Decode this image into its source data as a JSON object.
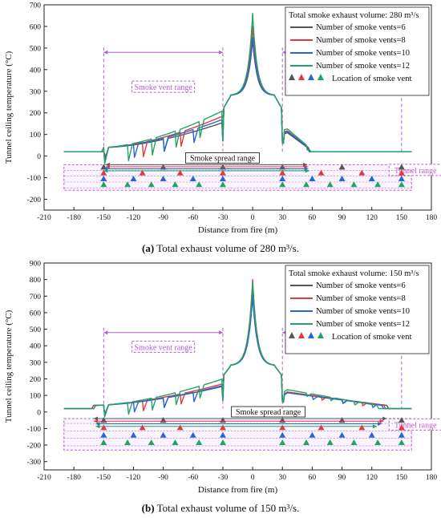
{
  "colors": {
    "six": "#555555",
    "eight": "#e03a3e",
    "ten": "#2b63d8",
    "twelve": "#1ea564",
    "range": "#b35ed9",
    "tunnel": "#c45ad6"
  },
  "panels": [
    {
      "caption_letter": "(a)",
      "caption_text": "Total exhaust volume of 280 m³/s.",
      "chart_data": {
        "type": "line",
        "ylabel": "Tunnel ceiling temperature (°C)",
        "xlabel": "Distance from fire (m)",
        "xlim": [
          -210,
          180
        ],
        "ylim": [
          -250,
          700
        ],
        "x_ticks": [
          -210,
          -180,
          -150,
          -120,
          -90,
          -60,
          -30,
          0,
          30,
          60,
          90,
          120,
          150,
          180
        ],
        "y_ticks": [
          -200,
          -100,
          0,
          100,
          200,
          300,
          400,
          500,
          600,
          700
        ],
        "legend_title": "Total smoke exhaust volume: 280 m³/s",
        "series": [
          {
            "name": "Number of smoke vents=6",
            "key": "six",
            "vents": [
              -150,
              -90,
              -30,
              30,
              90,
              150
            ],
            "peak": 540,
            "upstream_max": 155,
            "downstream_max": 125,
            "spread_up": -148,
            "spread_down": 55
          },
          {
            "name": "Number of smoke vents=8",
            "key": "eight",
            "vents": [
              -150,
              -111,
              -73,
              -30,
              30,
              69,
              110,
              150
            ],
            "peak": 600,
            "upstream_max": 185,
            "downstream_max": 135,
            "spread_up": -148,
            "spread_down": 56
          },
          {
            "name": "Number of smoke vents=10",
            "key": "ten",
            "vents": [
              -150,
              -120,
              -90,
              -60,
              -30,
              30,
              60,
              90,
              120,
              150
            ],
            "peak": 550,
            "upstream_max": 170,
            "downstream_max": 130,
            "spread_up": -150,
            "spread_down": 56
          },
          {
            "name": "Number of smoke vents=12",
            "key": "twelve",
            "vents": [
              -150,
              -126,
              -102,
              -78,
              -54,
              -30,
              30,
              54,
              78,
              102,
              126,
              150
            ],
            "peak": 660,
            "upstream_max": 210,
            "downstream_max": 145,
            "spread_up": -150,
            "spread_down": 57
          }
        ],
        "vent_marker_label": "Location of smoke vent",
        "smoke_vent_range_label": "Smoke vent range",
        "smoke_spread_range_label": "Smoke spread range",
        "tunnel_range_label": "Tunnel range",
        "tunnel_range": [
          -190,
          160
        ]
      }
    },
    {
      "caption_letter": "(b)",
      "caption_text": "Total exhaust volume of 150 m³/s.",
      "chart_data": {
        "type": "line",
        "ylabel": "Tunnel ceiling temperature (°C)",
        "xlabel": "Distance from fire (m)",
        "xlim": [
          -210,
          180
        ],
        "ylim": [
          -350,
          900
        ],
        "x_ticks": [
          -210,
          -180,
          -150,
          -120,
          -90,
          -60,
          -30,
          0,
          30,
          60,
          90,
          120,
          150,
          180
        ],
        "y_ticks": [
          -300,
          -200,
          -100,
          0,
          100,
          200,
          300,
          400,
          500,
          600,
          700,
          800,
          900
        ],
        "legend_title": "Total smoke exhaust volume: 150 m³/s",
        "series": [
          {
            "name": "Number of smoke vents=6",
            "key": "six",
            "vents": [
              -150,
              -90,
              -30,
              30,
              90,
              150
            ],
            "peak": 720,
            "upstream_max": 155,
            "downstream_max": 120,
            "spread_up": -160,
            "spread_down": 135
          },
          {
            "name": "Number of smoke vents=8",
            "key": "eight",
            "vents": [
              -150,
              -111,
              -73,
              -30,
              30,
              69,
              110,
              150
            ],
            "peak": 800,
            "upstream_max": 170,
            "downstream_max": 125,
            "spread_up": -160,
            "spread_down": 132
          },
          {
            "name": "Number of smoke vents=10",
            "key": "ten",
            "vents": [
              -150,
              -120,
              -90,
              -60,
              -30,
              30,
              60,
              90,
              120,
              150
            ],
            "peak": 700,
            "upstream_max": 160,
            "downstream_max": 120,
            "spread_up": -158,
            "spread_down": 130
          },
          {
            "name": "Number of smoke vents=12",
            "key": "twelve",
            "vents": [
              -150,
              -126,
              -102,
              -78,
              -54,
              -30,
              30,
              54,
              78,
              102,
              126,
              150
            ],
            "peak": 780,
            "upstream_max": 200,
            "downstream_max": 140,
            "spread_up": -158,
            "spread_down": 125
          }
        ],
        "vent_marker_label": "Location of smoke vent",
        "smoke_vent_range_label": "Smoke vent range",
        "smoke_spread_range_label": "Smoke spread range",
        "tunnel_range_label": "Tunnel range",
        "tunnel_range": [
          -190,
          160
        ]
      }
    }
  ]
}
